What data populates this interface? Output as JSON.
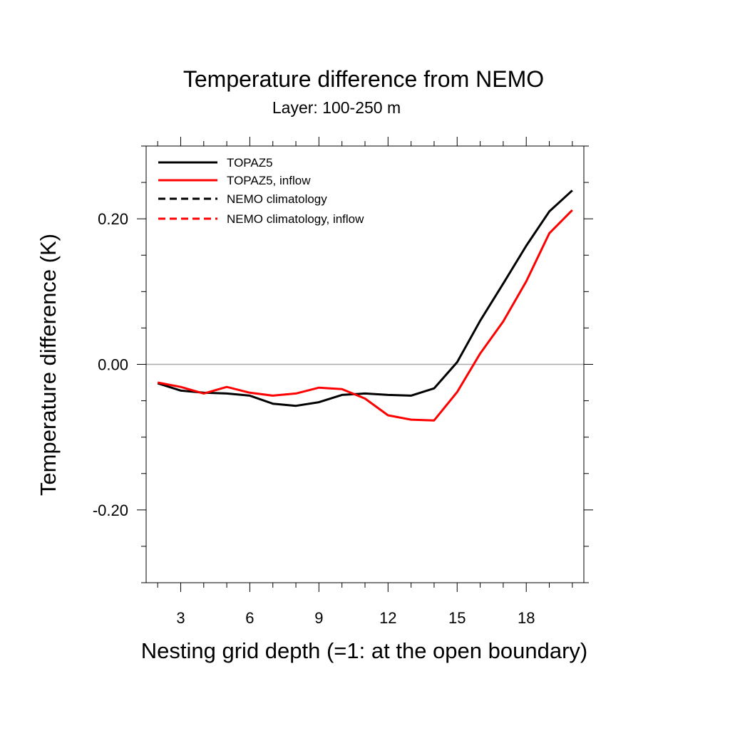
{
  "chart_data": {
    "type": "line",
    "title": "Temperature difference from NEMO",
    "subtitle": "Layer: 100-250 m",
    "xlabel": "Nesting grid depth (=1: at the open boundary)",
    "ylabel": "Temperature difference (K)",
    "x": [
      2,
      3,
      4,
      5,
      6,
      7,
      8,
      9,
      10,
      11,
      12,
      13,
      14,
      15,
      16,
      17,
      18,
      19,
      20
    ],
    "series": [
      {
        "name": "TOPAZ5",
        "color": "#000000",
        "dash": false,
        "values": [
          -0.026,
          -0.036,
          -0.039,
          -0.04,
          -0.043,
          -0.054,
          -0.057,
          -0.052,
          -0.042,
          -0.04,
          -0.042,
          -0.043,
          -0.033,
          0.003,
          0.06,
          0.111,
          0.163,
          0.21,
          0.239
        ]
      },
      {
        "name": "TOPAZ5, inflow",
        "color": "#ff0000",
        "dash": false,
        "values": [
          -0.025,
          -0.031,
          -0.04,
          -0.031,
          -0.039,
          -0.043,
          -0.04,
          -0.032,
          -0.034,
          -0.047,
          -0.07,
          -0.076,
          -0.077,
          -0.038,
          0.015,
          0.059,
          0.114,
          0.18,
          0.212
        ]
      },
      {
        "name": "NEMO climatology",
        "color": "#000000",
        "dash": true,
        "values": [
          null,
          null,
          null,
          null,
          null,
          null,
          null,
          null,
          null,
          null,
          null,
          null,
          null,
          null,
          null,
          null,
          null,
          null,
          null
        ]
      },
      {
        "name": "NEMO climatology, inflow",
        "color": "#ff0000",
        "dash": true,
        "values": [
          null,
          null,
          null,
          null,
          null,
          null,
          null,
          null,
          null,
          null,
          null,
          null,
          null,
          null,
          null,
          null,
          null,
          null,
          null
        ]
      }
    ],
    "xlim": [
      1.5,
      20.5
    ],
    "xticks": [
      3,
      6,
      9,
      12,
      15,
      18
    ],
    "xminorticks": [
      2,
      4,
      5,
      7,
      8,
      10,
      11,
      13,
      14,
      16,
      17,
      19,
      20
    ],
    "ylim": [
      -0.3,
      0.3
    ],
    "yticks": [
      {
        "value": -0.2,
        "label": "-0.20"
      },
      {
        "value": 0,
        "label": "0.00"
      },
      {
        "value": 0.2,
        "label": "0.20"
      }
    ],
    "yminorticks": [
      -0.3,
      -0.25,
      -0.15,
      -0.1,
      -0.05,
      0.05,
      0.1,
      0.15,
      0.25,
      0.3
    ],
    "reference_line": 0,
    "reference_color": "#aaaaaa",
    "legend": "upper left"
  }
}
